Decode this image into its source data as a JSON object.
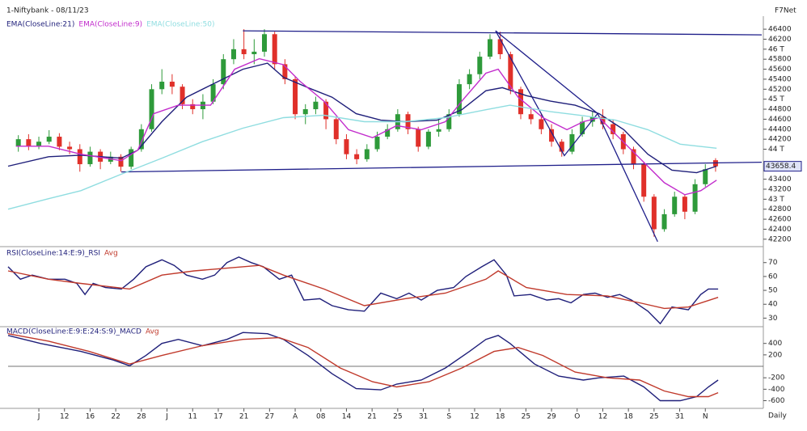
{
  "chart_data": [
    {
      "type": "candlestick",
      "title": "1-Niftybank - 08/11/23",
      "source": "F7Net",
      "xlim": [
        0,
        147
      ],
      "ylim": [
        42100,
        46450
      ],
      "yticks": [
        46400,
        46200,
        {
          "value": 46000,
          "label": "46 T"
        },
        45800,
        45600,
        45400,
        45200,
        {
          "value": 45000,
          "label": "45 T"
        },
        44800,
        44600,
        44400,
        44200,
        {
          "value": 44000,
          "label": "44 T"
        },
        43400,
        43200,
        {
          "value": 43000,
          "label": "43 T"
        },
        42800,
        42600,
        42400,
        42200
      ],
      "up_color": "#2e9a3a",
      "down_color": "#e0302a",
      "candles": {
        "x": [
          2,
          4,
          6,
          8,
          10,
          12,
          14,
          16,
          18,
          20,
          22,
          24,
          26,
          28,
          30,
          32,
          34,
          36,
          38,
          40,
          42,
          44,
          46,
          48,
          50,
          52,
          54,
          56,
          58,
          60,
          62,
          64,
          66,
          68,
          70,
          72,
          74,
          76,
          78,
          80,
          82,
          84,
          86,
          88,
          90,
          92,
          94,
          96,
          98,
          100,
          102,
          104,
          106,
          108,
          110,
          112,
          114,
          116,
          118,
          120,
          122,
          124,
          126,
          128,
          130,
          132,
          134,
          136,
          138
        ],
        "open": [
          44050,
          44200,
          44050,
          44150,
          44250,
          44050,
          44000,
          43700,
          43950,
          43750,
          43850,
          43650,
          44000,
          44400,
          45200,
          45350,
          45250,
          44900,
          44800,
          44950,
          45300,
          45800,
          46000,
          45900,
          45950,
          46300,
          45700,
          45400,
          44700,
          44800,
          44950,
          44600,
          44200,
          43900,
          43800,
          44000,
          44250,
          44400,
          44700,
          44400,
          44050,
          44350,
          44400,
          44700,
          45300,
          45500,
          45850,
          46200,
          45900,
          45200,
          44700,
          44600,
          44400,
          44150,
          43950,
          44300,
          44550,
          44650,
          44500,
          44300,
          44000,
          43700,
          43050,
          42400,
          42700,
          43050,
          42750,
          43300,
          43780
        ],
        "high": [
          44280,
          44300,
          44250,
          44380,
          44320,
          44150,
          44100,
          44050,
          44000,
          43950,
          43900,
          44050,
          44500,
          45300,
          45600,
          45500,
          45300,
          45000,
          45100,
          45400,
          45900,
          46200,
          46400,
          46200,
          46400,
          46350,
          45800,
          45450,
          44900,
          45050,
          45000,
          44650,
          44300,
          44000,
          44100,
          44350,
          44500,
          44800,
          44750,
          44450,
          44400,
          44600,
          44800,
          45400,
          45600,
          45950,
          46300,
          46350,
          45950,
          45250,
          44800,
          44700,
          44500,
          44200,
          44400,
          44650,
          44750,
          44800,
          44600,
          44350,
          44050,
          43750,
          43100,
          42800,
          43150,
          43100,
          43400,
          43700,
          43820
        ],
        "low": [
          43950,
          43980,
          44000,
          44100,
          43980,
          43900,
          43550,
          43650,
          43600,
          43700,
          43550,
          43600,
          43950,
          44350,
          45100,
          45100,
          44800,
          44700,
          44600,
          44900,
          45200,
          45700,
          45800,
          45700,
          45850,
          45600,
          45300,
          44600,
          44500,
          44700,
          44400,
          44100,
          43800,
          43700,
          43750,
          43950,
          44200,
          44350,
          44300,
          43950,
          44000,
          44250,
          44350,
          44650,
          45200,
          45400,
          45800,
          45800,
          45100,
          44600,
          44500,
          44300,
          44050,
          43850,
          43900,
          44250,
          44450,
          44400,
          44200,
          43900,
          43600,
          42950,
          42250,
          42350,
          42650,
          42600,
          42700,
          43250,
          43550
        ],
        "close": [
          44200,
          44050,
          44150,
          44250,
          44050,
          44000,
          43700,
          43950,
          43750,
          43850,
          43650,
          44000,
          44400,
          45200,
          45350,
          45250,
          44900,
          44800,
          44950,
          45300,
          45800,
          46000,
          45900,
          45950,
          46300,
          45700,
          45400,
          44700,
          44800,
          44950,
          44600,
          44200,
          43900,
          43800,
          44000,
          44250,
          44400,
          44700,
          44400,
          44050,
          44350,
          44400,
          44700,
          45300,
          45500,
          45850,
          46200,
          45900,
          45200,
          44700,
          44600,
          44400,
          44150,
          43950,
          44300,
          44550,
          44650,
          44500,
          44300,
          44000,
          43700,
          43050,
          42400,
          42700,
          43050,
          42750,
          43300,
          43600,
          43658.4
        ]
      },
      "series": [
        {
          "name": "EMA(CloseLine:21)",
          "color": "#1f1f7a",
          "x": [
            0,
            7.9,
            14.2,
            22.1,
            25.3,
            30,
            34.8,
            39.5,
            45.8,
            50.6,
            53.7,
            58.5,
            63.2,
            67.9,
            72.7,
            77.4,
            83.7,
            88.5,
            93.2,
            96.4,
            101.1,
            105.8,
            110.6,
            115.3,
            120.1,
            124.8,
            129.5,
            134.3,
            138.2
          ],
          "values": [
            43660,
            43850,
            43880,
            43820,
            43980,
            44550,
            45040,
            45280,
            45600,
            45720,
            45440,
            45230,
            45040,
            44710,
            44580,
            44550,
            44580,
            44790,
            45170,
            45230,
            45070,
            44960,
            44880,
            44710,
            44390,
            43900,
            43580,
            43530,
            43660
          ]
        },
        {
          "name": "EMA(CloseLine:9)",
          "color": "#c22ccc",
          "x": [
            1.6,
            7.9,
            14.2,
            22.1,
            25.3,
            28.4,
            33.2,
            39.5,
            44.2,
            49,
            53.7,
            56.9,
            61.6,
            66.4,
            71.1,
            75.8,
            80.6,
            85.3,
            88.5,
            93.2,
            95.6,
            99.5,
            104.3,
            109,
            112.2,
            115.3,
            118.5,
            123.2,
            128,
            132,
            135.1,
            138.2
          ],
          "values": [
            44060,
            44060,
            43900,
            43770,
            43980,
            44710,
            44880,
            44880,
            45600,
            45810,
            45690,
            45360,
            44960,
            44390,
            44230,
            44470,
            44390,
            44550,
            44960,
            45520,
            45600,
            45040,
            44630,
            44390,
            44550,
            44630,
            44300,
            43820,
            43330,
            43090,
            43170,
            43380
          ]
        },
        {
          "name": "EMA(CloseLine:50)",
          "color": "#8fdde0",
          "x": [
            0,
            7.9,
            14.2,
            22.1,
            30,
            37.9,
            45.8,
            53.7,
            61.6,
            69.5,
            77.4,
            85.3,
            93.2,
            97.9,
            105.8,
            112.2,
            118.5,
            124.8,
            131.1,
            138.2
          ],
          "values": [
            42800,
            43010,
            43170,
            43500,
            43820,
            44150,
            44420,
            44630,
            44680,
            44550,
            44550,
            44630,
            44790,
            44880,
            44750,
            44670,
            44580,
            44390,
            44100,
            44020
          ]
        }
      ],
      "trendline_color": "#1f1f8a",
      "trendlines": [
        {
          "x": [
            45.8,
            147
          ],
          "y": [
            46368,
            46286
          ]
        },
        {
          "x": [
            22.1,
            147
          ],
          "y": [
            43545,
            43740
          ]
        },
        {
          "x": [
            95.1,
            108.5,
            115,
            126.7
          ],
          "y": [
            46368,
            43870,
            44713,
            42150
          ]
        },
        {
          "x": [
            95.1,
            115
          ],
          "y": [
            46368,
            44713
          ]
        }
      ],
      "last_price": 43658.4
    },
    {
      "type": "line",
      "xlim": [
        0,
        147
      ],
      "ylim": [
        25,
        78
      ],
      "yticks": [
        70,
        60,
        50,
        40,
        30
      ],
      "series": [
        {
          "name": "RSI(CloseLine:14:E:9)_RSI",
          "color": "#1f1f7a",
          "x": [
            0,
            2.4,
            4.7,
            7.9,
            11.1,
            13.4,
            15,
            16.6,
            19,
            22.1,
            24.5,
            26.9,
            30,
            32.4,
            34.8,
            37.9,
            40.3,
            42.7,
            45,
            47.4,
            49.8,
            52.9,
            55.3,
            57.7,
            60.8,
            63.2,
            66.4,
            69.5,
            72.7,
            75.8,
            78.2,
            80.6,
            83.7,
            86.9,
            89.3,
            92.4,
            94.8,
            97.2,
            98.7,
            101.9,
            105.1,
            107.4,
            109.8,
            112.2,
            114.5,
            116.9,
            119.3,
            121.6,
            124.8,
            127.2,
            129.5,
            132.7,
            135.1,
            136.6,
            138.5
          ],
          "values": [
            67,
            58,
            61,
            58,
            58,
            55,
            47,
            55,
            52,
            51,
            58,
            67,
            72,
            68,
            61,
            58,
            61,
            70,
            74,
            70,
            67,
            58,
            61,
            43,
            44,
            39,
            36,
            35,
            48,
            44,
            48,
            43,
            50,
            52,
            60,
            67,
            72,
            61,
            46,
            47,
            43,
            44,
            41,
            47,
            48,
            45,
            47,
            43,
            35,
            26,
            38,
            36,
            47,
            51,
            51
          ]
        },
        {
          "name": "Avg",
          "color": "#c0392b",
          "x": [
            0,
            7.9,
            14.2,
            23.7,
            30,
            36.3,
            42.7,
            49,
            53.7,
            61.6,
            69.5,
            77.4,
            85.3,
            93.2,
            95.6,
            101.1,
            109,
            116.9,
            123.2,
            128,
            132.7,
            138.5
          ],
          "values": [
            64,
            58,
            55,
            51,
            61,
            64,
            66,
            68,
            61,
            51,
            39,
            44,
            48,
            58,
            64,
            52,
            47,
            46,
            41,
            37,
            38,
            45
          ]
        }
      ]
    },
    {
      "type": "line",
      "xlim": [
        0,
        147
      ],
      "ylim": [
        -720,
        650
      ],
      "yticks": [
        400,
        200,
        -200,
        -400,
        -600
      ],
      "xticks": [
        {
          "value": 6,
          "label": "J"
        },
        {
          "value": 11,
          "label": "12"
        },
        {
          "value": 16,
          "label": "16"
        },
        {
          "value": 21,
          "label": "22"
        },
        {
          "value": 26,
          "label": "28"
        },
        {
          "value": 31,
          "label": "J"
        },
        {
          "value": 36,
          "label": "11"
        },
        {
          "value": 41,
          "label": "17"
        },
        {
          "value": 46,
          "label": "21"
        },
        {
          "value": 51,
          "label": "27"
        },
        {
          "value": 56,
          "label": "A"
        },
        {
          "value": 61,
          "label": "08"
        },
        {
          "value": 66,
          "label": "14"
        },
        {
          "value": 71,
          "label": "21"
        },
        {
          "value": 76,
          "label": "25"
        },
        {
          "value": 81,
          "label": "31"
        },
        {
          "value": 86,
          "label": "S"
        },
        {
          "value": 91,
          "label": "12"
        },
        {
          "value": 96,
          "label": "18"
        },
        {
          "value": 101,
          "label": "25"
        },
        {
          "value": 106,
          "label": "29"
        },
        {
          "value": 111,
          "label": "O"
        },
        {
          "value": 116,
          "label": "12"
        },
        {
          "value": 121,
          "label": "18"
        },
        {
          "value": 126,
          "label": "25"
        },
        {
          "value": 131,
          "label": "31"
        },
        {
          "value": 136,
          "label": "N"
        }
      ],
      "xlabel": "Daily",
      "series": [
        {
          "name": "MACD(CloseLine:E:9:E:24:S:9)_MACD",
          "color": "#1f1f7a",
          "x": [
            0,
            6.3,
            14.2,
            20.5,
            23.7,
            26.9,
            30,
            33.2,
            37.9,
            42.7,
            45.8,
            50.6,
            53.7,
            58.5,
            63.2,
            67.9,
            72.7,
            75.8,
            80.6,
            85.3,
            90,
            93.2,
            95.6,
            97.9,
            102.7,
            107.4,
            112.2,
            115.3,
            120.1,
            124,
            127.2,
            131.1,
            134.3,
            136.6,
            138.5
          ],
          "values": [
            540,
            400,
            260,
            110,
            10,
            190,
            400,
            470,
            360,
            470,
            590,
            570,
            470,
            190,
            -130,
            -390,
            -410,
            -310,
            -240,
            -30,
            260,
            470,
            540,
            400,
            40,
            -170,
            -240,
            -200,
            -170,
            -360,
            -600,
            -600,
            -530,
            -360,
            -240
          ]
        },
        {
          "name": "Avg",
          "color": "#c0392b",
          "x": [
            0,
            7.9,
            15.8,
            23.7,
            30,
            37.9,
            45.8,
            52.9,
            58.5,
            64.8,
            71.1,
            75.8,
            82.1,
            88.5,
            94.8,
            99.5,
            104.3,
            110.6,
            116.9,
            123.2,
            128,
            132.7,
            136.6,
            138.5
          ],
          "values": [
            570,
            440,
            260,
            40,
            190,
            360,
            470,
            500,
            330,
            -30,
            -270,
            -360,
            -270,
            -30,
            260,
            330,
            190,
            -100,
            -200,
            -240,
            -430,
            -530,
            -530,
            -460
          ]
        }
      ]
    }
  ]
}
